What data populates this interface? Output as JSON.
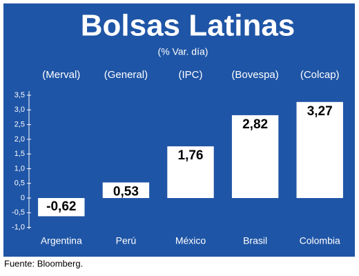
{
  "chart_data": {
    "type": "bar",
    "title": "Bolsas Latinas",
    "subtitle": "(% Var. día)",
    "index_names": [
      "(Merval)",
      "(General)",
      "(IPC)",
      "(Bovespa)",
      "(Colcap)"
    ],
    "categories": [
      "Argentina",
      "Perú",
      "México",
      "Brasil",
      "Colombia"
    ],
    "values": [
      -0.62,
      0.53,
      1.76,
      2.82,
      3.27
    ],
    "value_labels": [
      "-0,62",
      "0,53",
      "1,76",
      "2,82",
      "3,27"
    ],
    "color": "#ffffff",
    "ylim": [
      -1.0,
      3.5
    ],
    "yticks": [
      {
        "value": -1.0,
        "label": "-1,0"
      },
      {
        "value": -0.5,
        "label": "-0,5"
      },
      0,
      {
        "value": 0.5,
        "label": "0,5"
      },
      {
        "value": 1.0,
        "label": "1,0"
      },
      {
        "value": 1.5,
        "label": "1,5"
      },
      {
        "value": 2.0,
        "label": "2,0"
      },
      {
        "value": 2.5,
        "label": "2,5"
      },
      {
        "value": 3.0,
        "label": "3,0"
      },
      {
        "value": 3.5,
        "label": "3,5"
      }
    ],
    "source": "Fuente: Bloomberg."
  }
}
